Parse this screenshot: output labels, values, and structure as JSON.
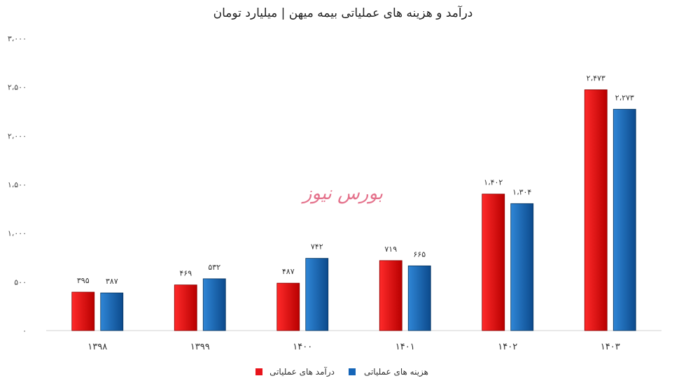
{
  "chart_data": {
    "type": "bar",
    "title": "درآمد و هزینه های عملیاتی بیمه میهن | میلیارد تومان",
    "categories": [
      "۱۳۹۸",
      "۱۳۹۹",
      "۱۴۰۰",
      "۱۴۰۱",
      "۱۴۰۲",
      "۱۴۰۳"
    ],
    "series": [
      {
        "name": "درآمد های عملیاتی",
        "color": "#e8141b",
        "values": [
          395,
          469,
          487,
          719,
          1402,
          2473
        ],
        "labels": [
          "۳۹۵",
          "۴۶۹",
          "۴۸۷",
          "۷۱۹",
          "۱،۴۰۲",
          "۲،۴۷۳"
        ]
      },
      {
        "name": "هزینه های عملیاتی",
        "color": "#1565b8",
        "values": [
          387,
          532,
          742,
          665,
          1304,
          2273
        ],
        "labels": [
          "۳۸۷",
          "۵۳۲",
          "۷۴۲",
          "۶۶۵",
          "۱،۳۰۴",
          "۲،۲۷۳"
        ]
      }
    ],
    "ylim": [
      0,
      3000
    ],
    "yticks": [
      0,
      500,
      1000,
      1500,
      2000,
      2500,
      3000
    ],
    "ytick_labels": [
      "۰",
      "۵۰۰",
      "۱،۰۰۰",
      "۱،۵۰۰",
      "۲،۰۰۰",
      "۲،۵۰۰",
      "۳،۰۰۰"
    ],
    "grid": false,
    "legend_position": "bottom-center"
  },
  "watermark": "بورس نیوز"
}
